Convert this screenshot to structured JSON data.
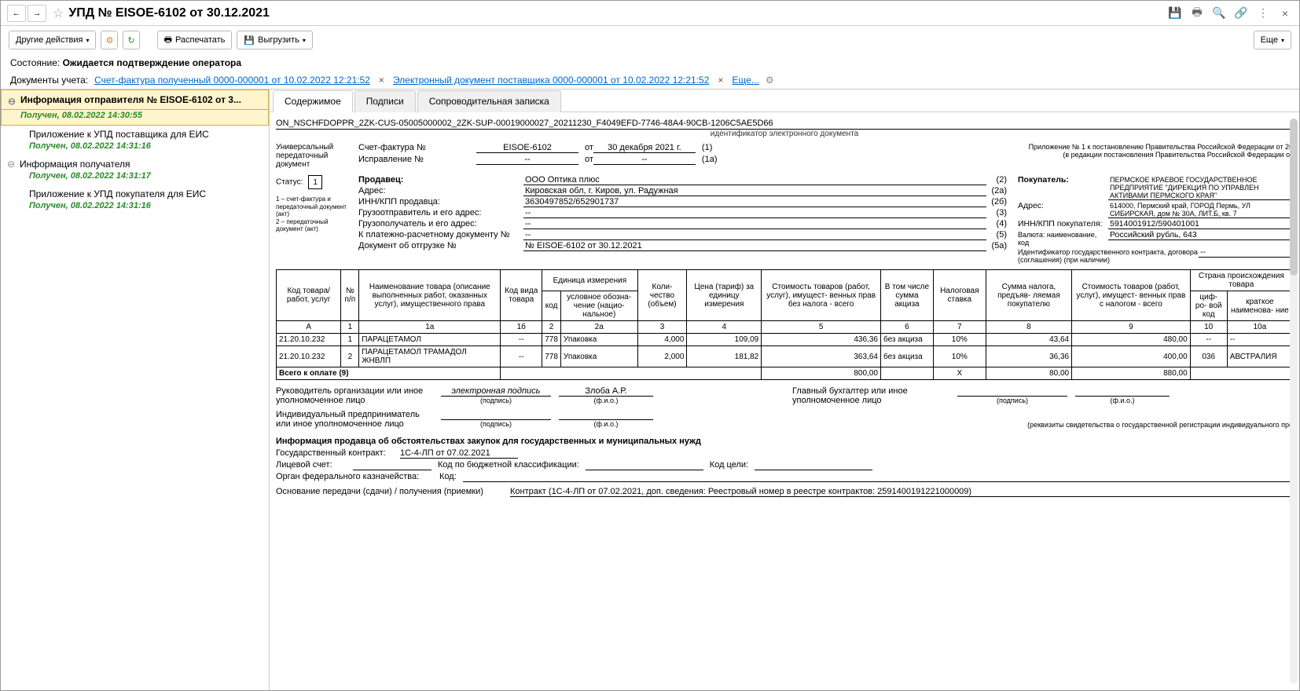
{
  "titlebar": {
    "title": "УПД № EISOE-6102 от 30.12.2021"
  },
  "toolbar": {
    "other_actions": "Другие действия",
    "print": "Распечатать",
    "export": "Выгрузить",
    "more": "Еще"
  },
  "state": {
    "label": "Состояние:",
    "value": "Ожидается подтверждение оператора"
  },
  "docs_row": {
    "label": "Документы учета:",
    "link1": "Счет-фактура полученный 0000-000001 от 10.02.2022 12:21:52",
    "link2": "Электронный документ поставщика 0000-000001 от 10.02.2022 12:21:52",
    "more": "Еще..."
  },
  "tree": {
    "root": "Информация отправителя № EISOE-6102 от 3...",
    "root_status": "Получен, 08.02.2022 14:30:55",
    "item1": "Приложение к УПД поставщика для ЕИС",
    "item1_status": "Получен, 08.02.2022 14:31:16",
    "group2": "Информация получателя",
    "group2_status": "Получен, 08.02.2022 14:31:17",
    "item3": "Приложение к УПД покупателя для ЕИС",
    "item3_status": "Получен, 08.02.2022 14:31:16"
  },
  "tabs": {
    "content": "Содержимое",
    "signatures": "Подписи",
    "cover_note": "Сопроводительная записка"
  },
  "doc": {
    "identifier": "ON_NSCHFDOPPR_2ZK-CUS-05005000002_2ZK-SUP-00019000027_20211230_F4049EFD-7746-48A4-90CB-1206C5AE5D66",
    "identifier_label": "идентификатор электронного документа",
    "upd_label": "Универсальный передаточный документ",
    "invoice_label": "Счет-фактура №",
    "invoice_num": "EISOE-6102",
    "date_label": "от",
    "invoice_date": "30 декабря 2021 г.",
    "sfx1": "(1)",
    "correction_label": "Исправление №",
    "correction_num": "--",
    "correction_date": "--",
    "sfx1a": "(1а)",
    "right_note1": "Приложение № 1 к постановлению Правительства Российской Федерации от 26",
    "right_note2": "(в редакции постановления Правительства Российской Федерации от",
    "status_label": "Статус:",
    "status_value": "1",
    "status_legend": "1 – счет-фактура и передаточный документ (акт)\n2 – передаточный документ (акт)",
    "seller": {
      "label": "Продавец:",
      "name": "ООО Оптика плюс",
      "addr_label": "Адрес:",
      "addr": "Кировская обл, г. Киров, ул. Радужная",
      "inn_label": "ИНН/КПП продавца:",
      "inn": "3630497852/652901737",
      "shipper_label": "Грузоотправитель и его адрес:",
      "shipper": "--",
      "consignee_label": "Грузополучатель и его адрес:",
      "consignee": "--",
      "payment_label": "К платежно-расчетному документу №",
      "payment": "--",
      "shipdoc_label": "Документ об отгрузке №",
      "shipdoc": "№ EISOE-6102 от 30.12.2021"
    },
    "nums": {
      "n2": "(2)",
      "n2a": "(2а)",
      "n2b": "(2б)",
      "n3": "(3)",
      "n4": "(4)",
      "n5": "(5)",
      "n5a": "(5а)"
    },
    "buyer": {
      "label": "Покупатель:",
      "name": "ПЕРМСКОЕ КРАЕВОЕ ГОСУДАРСТВЕННОЕ ПРЕДПРИЯТИЕ \"ДИРЕКЦИЯ ПО УПРАВЛЕН АКТИВАМИ ПЕРМСКОГО КРАЯ\"",
      "addr_label": "Адрес:",
      "addr": "614000, Пермский край, ГОРОД Пермь, УЛ СИБИРСКАЯ, дом № 30А, ЛИТ.Б, кв. 7",
      "inn_label": "ИНН/КПП покупателя:",
      "inn": "5914001912/590401001",
      "currency_label": "Валюта: наименование, код",
      "currency": "Российский рубль, 643",
      "gov_id_label": "Идентификатор государственного контракта, договора (соглашения) (при наличии)",
      "gov_id": "--"
    },
    "table": {
      "headers": {
        "code": "Код товара/ работ, услуг",
        "num": "№ п/п",
        "name": "Наименование товара (описание выполненных работ, оказанных услуг), имущественного права",
        "kind": "Код вида товара",
        "unit": "Единица измерения",
        "unit_code": "код",
        "unit_name": "условное обозна- чение (нацио- нальное)",
        "qty": "Коли- чество (объем)",
        "price": "Цена (тариф) за единицу измерения",
        "cost_no_tax": "Стоимость товаров (работ, услуг), имущест- венных прав без налога - всего",
        "excise": "В том числе сумма акциза",
        "tax_rate": "Налоговая ставка",
        "tax_sum": "Сумма налога, предъяв- ляемая покупателю",
        "cost_with_tax": "Стоимость товаров (работ, услуг), имущест- венных прав с налогом - всего",
        "country": "Страна происхождения товара",
        "country_code": "циф- ро- вой код",
        "country_name": "краткое наименова- ние"
      },
      "col_labels": [
        "А",
        "1",
        "1а",
        "1б",
        "2",
        "2а",
        "3",
        "4",
        "5",
        "6",
        "7",
        "8",
        "9",
        "10",
        "10а"
      ],
      "rows": [
        {
          "code": "21.20.10.232",
          "n": "1",
          "name": "ПАРАЦЕТАМОЛ",
          "kind": "--",
          "ucode": "778",
          "uname": "Упаковка",
          "qty": "4,000",
          "price": "109,09",
          "cost": "436,36",
          "excise": "без акциза",
          "rate": "10%",
          "tax": "43,64",
          "total": "480,00",
          "ccode": "--",
          "cname": "--"
        },
        {
          "code": "21.20.10.232",
          "n": "2",
          "name": "ПАРАЦЕТАМОЛ ТРАМАДОЛ ЖНВЛП",
          "kind": "--",
          "ucode": "778",
          "uname": "Упаковка",
          "qty": "2,000",
          "price": "181,82",
          "cost": "363,64",
          "excise": "без акциза",
          "rate": "10%",
          "tax": "36,36",
          "total": "400,00",
          "ccode": "036",
          "cname": "АВСТРАЛИЯ"
        }
      ],
      "total_label": "Всего к оплате (9)",
      "total_cost": "800,00",
      "total_x": "X",
      "total_tax": "80,00",
      "total_sum": "880,00"
    },
    "signatures": {
      "head_label": "Руководитель организации или иное уполномоченное лицо",
      "sig_text": "электронная подпись",
      "sig_caption": "(подпись)",
      "fio": "Злоба А.Р.",
      "fio_caption": "(ф.и.о.)",
      "accountant_label": "Главный бухгалтер или иное уполномоченное лицо",
      "ip_label": "Индивидуальный предприниматель или иное уполномоченное лицо",
      "ip_note": "(реквизиты свидетельства о государственной регистрации индивидуального пре"
    },
    "gov": {
      "title": "Информация продавца об обстоятельствах закупок для государственных и муниципальных нужд",
      "contract_label": "Государственный контракт:",
      "contract": "1С-4-ЛП от 07.02.2021",
      "account_label": "Лицевой счет:",
      "budget_label": "Код по бюджетной классификации:",
      "target_label": "Код цели:",
      "treasury_label": "Орган федерального казначейства:",
      "code_label": "Код:",
      "basis_label": "Основание передачи (сдачи) / получения (приемки)",
      "basis": "Контракт (1С-4-ЛП от 07.02.2021, доп. сведения: Реестровый номер в реестре контрактов: 2591400191221000009)"
    }
  }
}
